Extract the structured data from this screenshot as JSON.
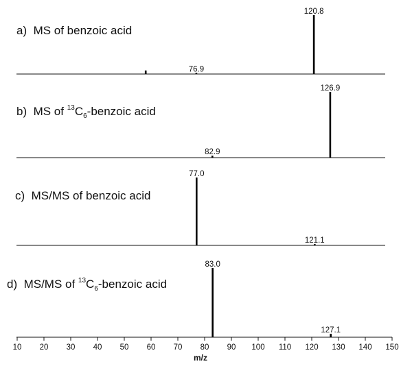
{
  "chart_data": [
    {
      "type": "bar",
      "panel": "a)",
      "title": "MS of benzoic acid",
      "peaks": [
        {
          "mz": 58,
          "intensity": 6,
          "label": ""
        },
        {
          "mz": 76.9,
          "intensity": 2,
          "label": "76.9"
        },
        {
          "mz": 120.8,
          "intensity": 100,
          "label": "120.8"
        }
      ]
    },
    {
      "type": "bar",
      "panel": "b)",
      "title_prefix": "MS of ",
      "title_sup": "13",
      "title_c": "C",
      "title_sub": "6",
      "title_suffix": "-benzoic acid",
      "peaks": [
        {
          "mz": 82.9,
          "intensity": 3,
          "label": "82.9"
        },
        {
          "mz": 126.9,
          "intensity": 100,
          "label": "126.9"
        }
      ]
    },
    {
      "type": "bar",
      "panel": "c)",
      "title": "MS/MS of benzoic acid",
      "peaks": [
        {
          "mz": 77.0,
          "intensity": 100,
          "label": "77.0"
        },
        {
          "mz": 121.1,
          "intensity": 2,
          "label": "121.1"
        }
      ]
    },
    {
      "type": "bar",
      "panel": "d)",
      "title_prefix": "MS/MS of ",
      "title_sup": "13",
      "title_c": "C",
      "title_sub": "6",
      "title_suffix": "-benzoic acid",
      "peaks": [
        {
          "mz": 83.0,
          "intensity": 100,
          "label": "83.0"
        },
        {
          "mz": 127.1,
          "intensity": 5,
          "label": "127.1"
        }
      ]
    }
  ],
  "x_axis": {
    "label": "m/z",
    "xlim": [
      10,
      150
    ],
    "ticks": [
      "10",
      "20",
      "30",
      "40",
      "50",
      "60",
      "70",
      "80",
      "90",
      "100",
      "110",
      "120",
      "130",
      "140",
      "150"
    ]
  }
}
